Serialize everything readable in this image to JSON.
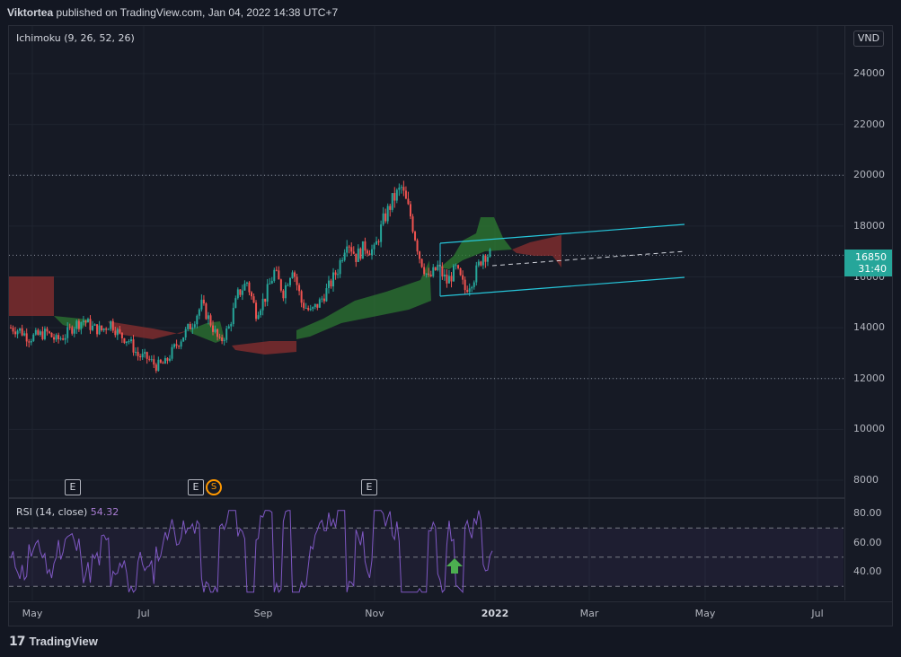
{
  "header": {
    "author": "Viktortea",
    "published_text": "published on TradingView.com, Jan 04, 2022 14:38 UTC+7"
  },
  "main_legend": {
    "indicator": "Ichimoku (9, 26, 52, 26)"
  },
  "currency": "VND",
  "price_axis": [
    "24000",
    "22000",
    "20000",
    "18000",
    "16000",
    "14000",
    "12000",
    "10000",
    "8000"
  ],
  "last_price": {
    "value": "16850",
    "countdown": "31:40"
  },
  "rsi": {
    "legend": "RSI (14, close)",
    "value": "54.32",
    "axis": [
      "80.00",
      "60.00",
      "40.00"
    ]
  },
  "time_axis": {
    "labels": [
      "May",
      "Jul",
      "Sep",
      "Nov",
      "2022",
      "Mar",
      "May",
      "Jul"
    ],
    "bold": "2022"
  },
  "events": [
    {
      "type": "E"
    },
    {
      "type": "E"
    },
    {
      "type": "S"
    },
    {
      "type": "E"
    }
  ],
  "colors": {
    "up": "#26a69a",
    "down": "#ef5350",
    "cloud_bull": "#2e7d32",
    "cloud_bear": "#8b2f2f",
    "channel": "#26c6da",
    "rsi_line": "#7e57c2",
    "arrow": "#4caf50"
  },
  "footer": {
    "brand": "TradingView"
  },
  "chart_data": {
    "type": "candlestick",
    "symbol_currency": "VND",
    "indicator": "Ichimoku (9, 26, 52, 26)",
    "ylim": [
      7500,
      25500
    ],
    "horizontal_levels": [
      20000,
      16850,
      12000
    ],
    "close_series_approx": [
      14000,
      13900,
      13600,
      13700,
      13800,
      13500,
      13700,
      14100,
      14300,
      14000,
      13900,
      14200,
      13700,
      13500,
      12900,
      12800,
      12500,
      12600,
      13200,
      13700,
      14200,
      14900,
      14200,
      13400,
      14000,
      15300,
      15800,
      14600,
      15200,
      16200,
      15400,
      16400,
      15000,
      14600,
      15000,
      15600,
      16300,
      17500,
      16800,
      17200,
      17000,
      18200,
      19000,
      19500,
      18400,
      16800,
      15900,
      16400,
      15800,
      16300,
      15500,
      16000,
      16900,
      16850
    ],
    "rsi": {
      "ylim": [
        20,
        90
      ],
      "levels": [
        70,
        50,
        30
      ],
      "last": 54.32
    }
  }
}
